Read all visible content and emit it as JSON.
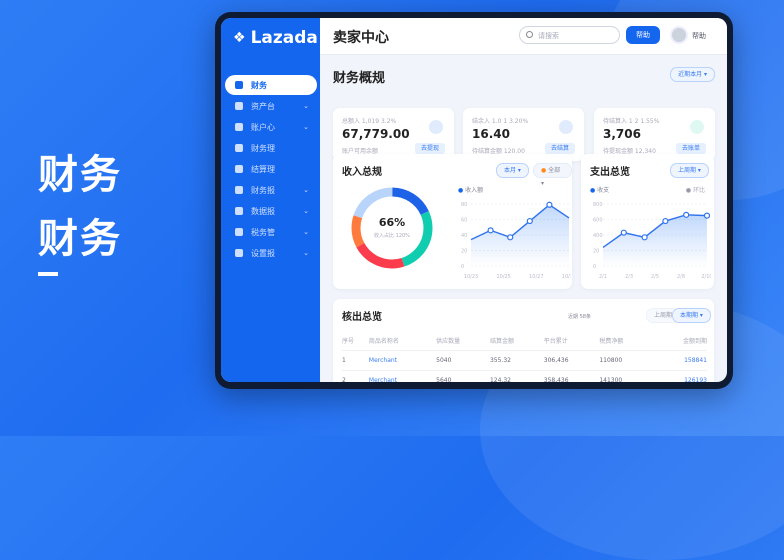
{
  "hero": {
    "line1": "财务",
    "line2": "财务"
  },
  "app": {
    "logo": "Lazada",
    "title": "卖家中心",
    "search_placeholder": "请搜索",
    "help_button": "帮助",
    "user": "帮助"
  },
  "sidebar": {
    "items": [
      {
        "label": "财务",
        "icon": "home-icon",
        "active": true
      },
      {
        "label": "资产台",
        "icon": "shop-icon",
        "chevron": true
      },
      {
        "label": "账户心",
        "icon": "wallet-icon",
        "chevron": true
      },
      {
        "label": "财务理",
        "icon": "user-icon"
      },
      {
        "label": "结算理",
        "icon": "box-icon"
      },
      {
        "label": "财务报",
        "icon": "grid-icon",
        "chevron": true
      },
      {
        "label": "数据报",
        "icon": "chart-icon",
        "chevron": true
      },
      {
        "label": "税务管",
        "icon": "doc-icon",
        "chevron": true
      },
      {
        "label": "设置报",
        "icon": "gear-icon",
        "chevron": true
      }
    ]
  },
  "overview": {
    "title": "财务概规",
    "range": "近期本月",
    "kpis": [
      {
        "label": "总额入 1,019 3.2%",
        "value": "67,779.00",
        "sub": "账户可用余额",
        "btn": "去提现",
        "color": "#1466ef"
      },
      {
        "label": "结余入 1.0 1 3.20%",
        "value": "16.40",
        "sub": "待结算金额 120.00",
        "btn": "去结算",
        "color": "#1466ef"
      },
      {
        "label": "待结算入 1 2 1.55%",
        "value": "3,706",
        "sub": "待提现金额 12,340",
        "btn": "去账单",
        "color": "#10c8a0"
      }
    ]
  },
  "income": {
    "title": "收入总规",
    "filter1": "本月",
    "filter2": "全部",
    "center_value": "66%",
    "center_label": "收入占比 120%",
    "legend": "收入额",
    "donut": [
      {
        "value": 18,
        "color": "#1e62e8"
      },
      {
        "value": 27,
        "color": "#10cdb0"
      },
      {
        "value": 22,
        "color": "#fa3c4c"
      },
      {
        "value": 13,
        "color": "#ff7a3d"
      },
      {
        "value": 20,
        "color": "#b8d4fa"
      }
    ],
    "chart_data": {
      "type": "area",
      "yticks": [
        0,
        20,
        40,
        60,
        80
      ],
      "xticks": [
        "10/23",
        "10/25",
        "10/27",
        "10/30"
      ],
      "values": [
        34,
        46,
        37,
        58,
        79,
        62
      ],
      "ylim": [
        0,
        80
      ]
    }
  },
  "expense": {
    "title": "支出总览",
    "filter": "上周期",
    "legend1": "收支",
    "legend2": "环比",
    "chart_data": {
      "type": "area",
      "yticks": [
        "0",
        "20",
        "400",
        "600",
        "800"
      ],
      "xticks": [
        "2/1",
        "2/3",
        "2/5",
        "2/8",
        "2/10"
      ],
      "values": [
        24,
        43,
        37,
        58,
        66,
        65
      ],
      "ylim": [
        0,
        80
      ]
    }
  },
  "table": {
    "title": "核出总览",
    "meta": "近期 58条",
    "btn1": "上周期",
    "btn2": "本期期",
    "columns": [
      "序号",
      "商品名称名",
      "供应数量",
      "结算金额",
      "平台累计",
      "税费净额",
      "金额到期"
    ],
    "rows": [
      [
        "1",
        "Merchant",
        "5040",
        "355.32",
        "306,436",
        "110800",
        "158841"
      ],
      [
        "2",
        "Merchant",
        "5640",
        "124.32",
        "358,436",
        "141300",
        "126193"
      ]
    ]
  }
}
